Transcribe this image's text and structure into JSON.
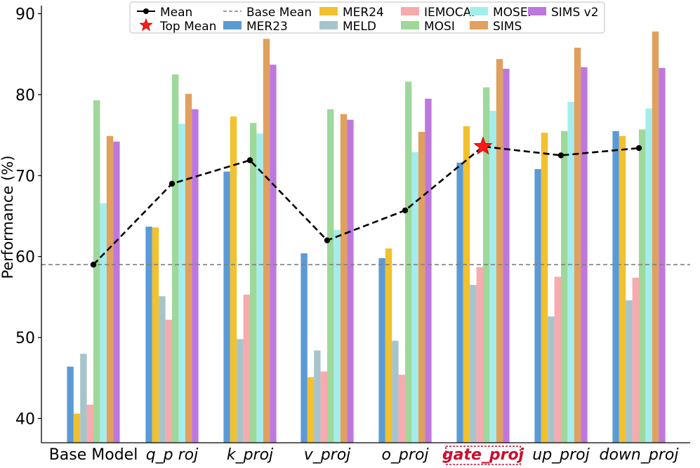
{
  "chart_data": {
    "type": "bar",
    "title": "",
    "xlabel": "",
    "ylabel": "Performance (%)",
    "ylim": [
      37,
      91
    ],
    "yticks": [
      40,
      50,
      60,
      70,
      80,
      90
    ],
    "grid": false,
    "legend_position": "top-center",
    "categories": [
      "Base Model",
      "q_proj",
      "k_proj",
      "v_proj",
      "o_proj",
      "gate_proj",
      "up_proj",
      "down_proj"
    ],
    "category_display": [
      "Base Model",
      "q_p roj",
      "k_proj",
      "v_proj",
      "o_proj",
      "gate_proj",
      "up_proj",
      "down_proj"
    ],
    "highlight_category": "gate_proj",
    "series": [
      {
        "name": "MER23",
        "color": "#5B9BD5",
        "values": [
          46.4,
          63.7,
          70.5,
          60.4,
          59.8,
          71.6,
          70.8,
          75.5
        ]
      },
      {
        "name": "MER24",
        "color": "#F2C12E",
        "values": [
          40.6,
          63.6,
          77.3,
          45.1,
          61.0,
          76.1,
          75.3,
          74.9
        ]
      },
      {
        "name": "MELD",
        "color": "#A7C4CB",
        "values": [
          48.0,
          55.1,
          49.8,
          48.4,
          49.6,
          56.5,
          52.6,
          54.6
        ]
      },
      {
        "name": "IEMOCAP",
        "color": "#F7ABAE",
        "values": [
          41.7,
          52.2,
          55.3,
          45.8,
          45.4,
          58.7,
          57.5,
          57.4
        ]
      },
      {
        "name": "MOSI",
        "color": "#9ED89A",
        "values": [
          79.3,
          82.5,
          76.5,
          78.2,
          81.6,
          80.9,
          75.5,
          75.7
        ]
      },
      {
        "name": "MOSEI",
        "color": "#A4EDED",
        "values": [
          66.6,
          76.4,
          75.2,
          63.3,
          72.9,
          78.0,
          79.1,
          78.3
        ]
      },
      {
        "name": "SIMS",
        "color": "#E0A05E",
        "values": [
          74.9,
          80.1,
          86.9,
          77.6,
          75.4,
          84.4,
          85.8,
          87.8
        ]
      },
      {
        "name": "SIMS v2",
        "color": "#BD78DD",
        "values": [
          74.2,
          78.2,
          83.7,
          76.9,
          79.5,
          83.2,
          83.4,
          83.3
        ]
      }
    ],
    "mean": {
      "name": "Mean",
      "values": [
        59.0,
        69.0,
        71.9,
        62.0,
        65.7,
        73.6,
        72.5,
        73.4
      ]
    },
    "top_mean": {
      "name": "Top Mean",
      "category": "gate_proj",
      "value": 73.6
    },
    "base_mean": {
      "name": "Base Mean",
      "value": 59.0
    },
    "legend": {
      "row1": [
        "Mean",
        "Base Mean",
        "MER24",
        "IEMOCAP",
        "MOSEI",
        "SIMS v2"
      ],
      "row2": [
        "Top Mean",
        "MER23",
        "MELD",
        "MOSI",
        "SIMS"
      ]
    }
  }
}
